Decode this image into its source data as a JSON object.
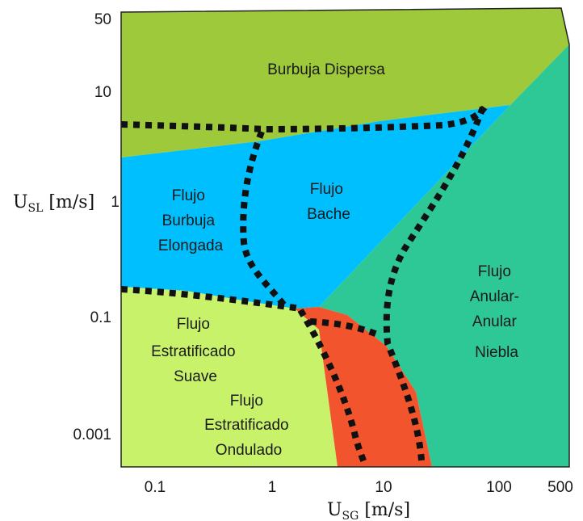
{
  "diagram": {
    "regions": [
      {
        "id": "burbuja-dispersa",
        "lines": [
          "Burbuja Dispersa"
        ],
        "color": "#9dc93b"
      },
      {
        "id": "flujo-burbuja-elongada",
        "lines": [
          "Flujo",
          "Burbuja",
          "Elongada"
        ],
        "color": "#00bfff"
      },
      {
        "id": "flujo-bache",
        "lines": [
          "Flujo",
          "Bache"
        ],
        "color": "#00bfff"
      },
      {
        "id": "flujo-anular",
        "lines": [
          "Flujo",
          "Anular-",
          "Anular",
          "Niebla"
        ],
        "color": "#2ec896"
      },
      {
        "id": "flujo-estratificado-suave",
        "lines": [
          "Flujo",
          "Estratificado",
          "Suave"
        ],
        "color": "#c9f26b"
      },
      {
        "id": "flujo-estratificado-ondulado",
        "lines": [
          "Flujo",
          "Estratificado",
          "Ondulado"
        ],
        "color": "#c9f26b"
      },
      {
        "id": "transition-zone",
        "lines": [],
        "color": "#f2552d"
      }
    ],
    "y_ticks": [
      "50",
      "10",
      "1",
      "0.1",
      "0.001"
    ],
    "x_ticks": [
      "0.1",
      "1",
      "10",
      "100",
      "500"
    ],
    "y_axis_label": {
      "main": "U",
      "sub": "SL",
      "unit": " [m/s]"
    },
    "x_axis_label": {
      "main": "U",
      "sub": "SG",
      "unit": " [m/s]"
    },
    "boundary_style": "thick black dotted"
  }
}
